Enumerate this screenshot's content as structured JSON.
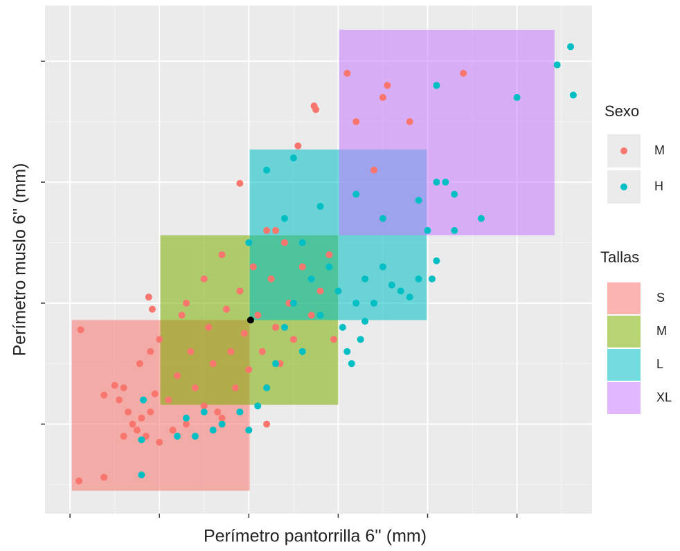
{
  "chart_data": {
    "type": "scatter",
    "x_label": "Perímetro pantorrilla 6'' (mm)",
    "y_label": "Perímetro muslo 6'' (mm)",
    "xlim": [
      -0.28,
      5.84
    ],
    "ylim": [
      -0.74,
      3.46
    ],
    "xticks": [
      0,
      1,
      2,
      3,
      4,
      5
    ],
    "yticks": [
      0,
      1,
      2,
      3
    ],
    "grid": true,
    "legend_title": "Sexo",
    "series": [
      {
        "name": "M",
        "color": "#F8766D",
        "x": [
          0.12,
          0.38,
          0.1,
          0.38,
          0.5,
          0.55,
          0.6,
          0.65,
          0.7,
          0.75,
          0.8,
          0.85,
          0.9,
          0.95,
          0.78,
          0.9,
          0.88,
          0.92,
          1.0,
          1.1,
          1.2,
          1.25,
          1.3,
          1.35,
          1.4,
          1.5,
          1.55,
          1.6,
          1.65,
          1.7,
          1.75,
          1.8,
          1.85,
          1.9,
          1.95,
          2.0,
          2.05,
          2.1,
          2.15,
          2.2,
          2.25,
          2.3,
          2.35,
          2.4,
          2.45,
          2.5,
          2.55,
          2.6,
          2.7,
          2.8,
          2.9,
          2.95,
          1.9,
          2.3,
          2.75,
          2.73,
          3.1,
          3.5,
          3.55,
          3.8,
          4.4,
          3.4,
          3.2,
          1.0,
          1.15,
          0.6,
          1.3,
          1.5,
          2.2,
          1.7
        ],
        "y": [
          0.78,
          -0.44,
          -0.47,
          0.24,
          0.32,
          0.2,
          0.3,
          0.1,
          0.0,
          -0.05,
          0.05,
          -0.1,
          0.1,
          0.25,
          0.5,
          0.6,
          1.05,
          0.95,
          0.7,
          0.2,
          0.4,
          0.9,
          1.0,
          0.6,
          0.3,
          1.2,
          0.8,
          0.5,
          0.1,
          1.4,
          0.95,
          0.6,
          0.3,
          1.1,
          0.75,
          0.45,
          1.3,
          0.9,
          0.6,
          1.6,
          1.2,
          0.8,
          0.5,
          1.5,
          1.0,
          0.7,
          2.3,
          1.3,
          0.9,
          1.1,
          1.4,
          0.7,
          1.99,
          1.6,
          2.6,
          2.63,
          2.9,
          2.7,
          2.8,
          2.5,
          2.9,
          2.1,
          2.5,
          -0.15,
          -0.05,
          -0.1,
          0.0,
          0.15,
          0.0,
          0.05
        ]
      },
      {
        "name": "H",
        "color": "#00BFC4",
        "x": [
          0.8,
          0.82,
          1.2,
          0.8,
          1.3,
          1.5,
          1.7,
          1.9,
          2.1,
          2.0,
          2.2,
          2.3,
          2.4,
          2.5,
          2.6,
          2.7,
          2.8,
          2.9,
          3.0,
          3.05,
          3.1,
          3.2,
          3.3,
          3.4,
          3.5,
          3.6,
          3.7,
          3.8,
          3.9,
          4.05,
          3.3,
          3.25,
          3.15,
          2.4,
          2.2,
          2.5,
          2.8,
          3.2,
          4.1,
          4.2,
          4.3,
          4.0,
          4.6,
          5.0,
          4.1,
          5.45,
          5.6,
          5.63,
          2.0,
          2.6,
          3.5,
          3.9,
          4.3,
          4.1,
          1.4,
          1.6
        ],
        "y": [
          -0.13,
          0.2,
          -0.1,
          -0.42,
          0.05,
          0.1,
          0.0,
          0.1,
          0.15,
          -0.05,
          0.3,
          0.5,
          0.8,
          1.0,
          0.6,
          1.2,
          0.9,
          1.3,
          1.1,
          0.8,
          0.6,
          1.0,
          1.2,
          1.0,
          1.3,
          1.15,
          1.1,
          1.05,
          1.2,
          1.2,
          0.85,
          0.7,
          0.5,
          1.7,
          2.1,
          2.2,
          1.8,
          1.9,
          2.0,
          2.0,
          1.9,
          1.6,
          1.7,
          2.7,
          2.8,
          2.97,
          3.12,
          2.72,
          1.5,
          1.5,
          1.7,
          1.85,
          1.6,
          1.35,
          -0.1,
          -0.05
        ]
      }
    ],
    "highlight_point": {
      "x": 2.02,
      "y": 0.86,
      "color": "#000000"
    },
    "regions_title": "Tallas",
    "regions": [
      {
        "name": "S",
        "color": "#F8766D",
        "x": [
          0.02,
          2.01
        ],
        "y": [
          -0.55,
          0.86
        ]
      },
      {
        "name": "M",
        "color": "#7CAE00",
        "x": [
          1.01,
          3.0
        ],
        "y": [
          0.16,
          1.56
        ]
      },
      {
        "name": "L",
        "color": "#00BFC4",
        "x": [
          2.01,
          3.99
        ],
        "y": [
          0.86,
          2.27
        ]
      },
      {
        "name": "XL",
        "color": "#C77CFF",
        "x": [
          3.01,
          5.42
        ],
        "y": [
          1.56,
          3.26
        ]
      }
    ]
  }
}
